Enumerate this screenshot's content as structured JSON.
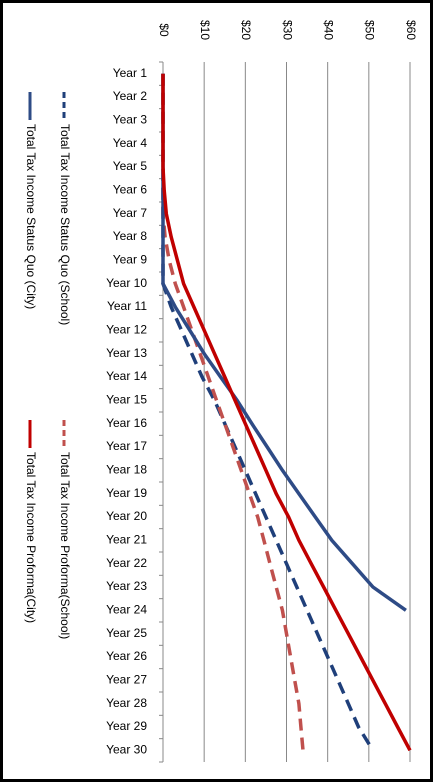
{
  "chart_data": {
    "type": "line",
    "orientation": "rotated",
    "categories": [
      "Year 1",
      "Year 2",
      "Year 3",
      "Year 4",
      "Year 5",
      "Year 6",
      "Year 7",
      "Year 8",
      "Year 9",
      "Year 10",
      "Year 11",
      "Year 12",
      "Year 13",
      "Year 14",
      "Year 15",
      "Year 16",
      "Year 17",
      "Year 18",
      "Year 19",
      "Year 20",
      "Year 21",
      "Year 22",
      "Year 23",
      "Year 24",
      "Year 25",
      "Year 26",
      "Year 27",
      "Year 28",
      "Year 29",
      "Year 30"
    ],
    "series": [
      {
        "name": "Total Tax Income Status Quo (School)",
        "color": "#1f3f7a",
        "dashed": true,
        "values": [
          0,
          0,
          0,
          0,
          0,
          0,
          0,
          0,
          0,
          0,
          2,
          4.5,
          7,
          9.5,
          12.5,
          15,
          17.5,
          20,
          22.5,
          25,
          27.5,
          30,
          32.5,
          35,
          37.5,
          40,
          42.5,
          45,
          47.5,
          51
        ]
      },
      {
        "name": "Total Tax Income Proforma(School)",
        "color": "#c0504d",
        "dashed": true,
        "values": [
          0,
          0,
          0,
          0,
          0,
          0,
          0,
          0.5,
          1.5,
          3,
          5,
          7,
          9,
          11,
          13,
          15,
          17,
          19,
          21,
          23,
          24.5,
          26,
          27.5,
          29,
          30,
          31,
          32,
          33,
          33.5,
          34
        ]
      },
      {
        "name": "Total Tax Income Status Quo (City)",
        "color": "#2e4b86",
        "dashed": false,
        "values": [
          0,
          0,
          0,
          0,
          0,
          0,
          0,
          0,
          0,
          0,
          3,
          6.5,
          10,
          14,
          18,
          21.6,
          25.3,
          29,
          33,
          37,
          41,
          46,
          51,
          59,
          null,
          null,
          null,
          null,
          null,
          null
        ]
      },
      {
        "name": "Total Tax Income Proforma(City)",
        "color": "#c00000",
        "dashed": false,
        "values": [
          0,
          0,
          0,
          0,
          0,
          0.3,
          0.8,
          2,
          3.5,
          5,
          7.5,
          10,
          12.5,
          15,
          17.5,
          20,
          22.5,
          25,
          27.5,
          30.5,
          33,
          36,
          39,
          42,
          45,
          48,
          51,
          54,
          57,
          60
        ]
      }
    ],
    "ylim": [
      0,
      60
    ],
    "yticks": [
      {
        "value": 0,
        "label": "$0"
      },
      {
        "value": 10,
        "label": "$10"
      },
      {
        "value": 20,
        "label": "$20"
      },
      {
        "value": 30,
        "label": "$30"
      },
      {
        "value": 40,
        "label": "$40"
      },
      {
        "value": 50,
        "label": "$50"
      },
      {
        "value": 60,
        "label": "$60"
      }
    ],
    "grid": true
  }
}
